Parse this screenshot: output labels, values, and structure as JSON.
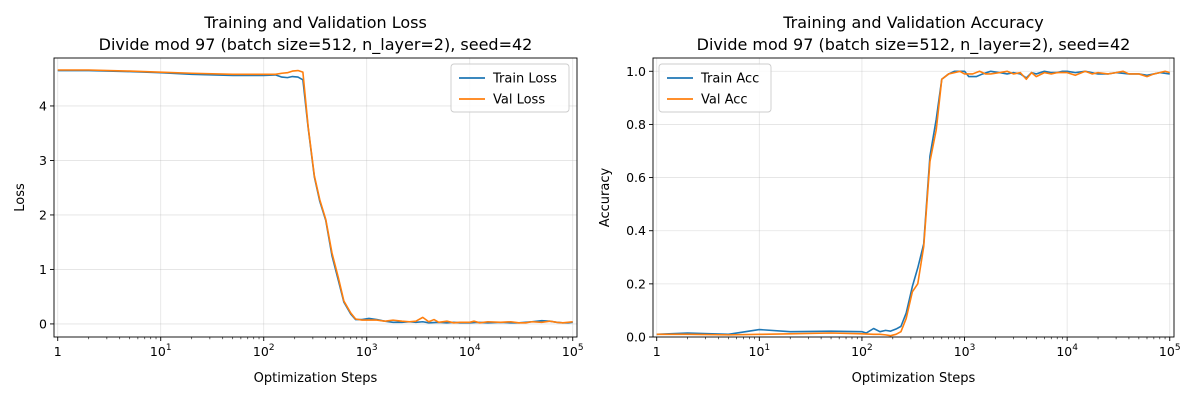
{
  "chart_data": [
    {
      "type": "line",
      "title": "Training and Validation Loss",
      "subtitle": "Divide mod 97 (batch size=512, n_layer=2), seed=42",
      "xlabel": "Optimization Steps",
      "ylabel": "Loss",
      "x_scale": "log",
      "xlim": [
        0.92,
        110000
      ],
      "ylim": [
        -0.24,
        4.88
      ],
      "x_ticks": [
        {
          "value": 1,
          "base": "1",
          "exp": ""
        },
        {
          "value": 10,
          "base": "10",
          "exp": "1"
        },
        {
          "value": 100,
          "base": "10",
          "exp": "2"
        },
        {
          "value": 1000,
          "base": "10",
          "exp": "3"
        },
        {
          "value": 10000,
          "base": "10",
          "exp": "4"
        },
        {
          "value": 100000,
          "base": "10",
          "exp": "5"
        }
      ],
      "y_ticks": [
        {
          "value": 0,
          "label": "0"
        },
        {
          "value": 1,
          "label": "1"
        },
        {
          "value": 2,
          "label": "2"
        },
        {
          "value": 3,
          "label": "3"
        },
        {
          "value": 4,
          "label": "4"
        }
      ],
      "grid": true,
      "legend_position": "top-right",
      "series": [
        {
          "name": "Train Loss",
          "color": "#1f77b4",
          "points": [
            [
              1,
              4.65
            ],
            [
              2,
              4.65
            ],
            [
              5,
              4.63
            ],
            [
              10,
              4.61
            ],
            [
              20,
              4.58
            ],
            [
              50,
              4.56
            ],
            [
              100,
              4.56
            ],
            [
              130,
              4.57
            ],
            [
              150,
              4.53
            ],
            [
              170,
              4.52
            ],
            [
              190,
              4.54
            ],
            [
              215,
              4.53
            ],
            [
              240,
              4.48
            ],
            [
              270,
              3.6
            ],
            [
              310,
              2.7
            ],
            [
              350,
              2.25
            ],
            [
              400,
              1.9
            ],
            [
              460,
              1.25
            ],
            [
              530,
              0.8
            ],
            [
              600,
              0.4
            ],
            [
              700,
              0.18
            ],
            [
              780,
              0.08
            ],
            [
              900,
              0.08
            ],
            [
              1050,
              0.1
            ],
            [
              1250,
              0.08
            ],
            [
              1500,
              0.05
            ],
            [
              1800,
              0.03
            ],
            [
              2200,
              0.03
            ],
            [
              2600,
              0.04
            ],
            [
              3000,
              0.03
            ],
            [
              3500,
              0.04
            ],
            [
              4000,
              0.02
            ],
            [
              5000,
              0.03
            ],
            [
              6000,
              0.02
            ],
            [
              7000,
              0.03
            ],
            [
              8000,
              0.02
            ],
            [
              10000,
              0.02
            ],
            [
              12000,
              0.03
            ],
            [
              15000,
              0.02
            ],
            [
              20000,
              0.03
            ],
            [
              25000,
              0.02
            ],
            [
              30000,
              0.02
            ],
            [
              40000,
              0.04
            ],
            [
              50000,
              0.06
            ],
            [
              60000,
              0.05
            ],
            [
              70000,
              0.03
            ],
            [
              80000,
              0.02
            ],
            [
              90000,
              0.02
            ],
            [
              100000,
              0.03
            ]
          ]
        },
        {
          "name": "Val Loss",
          "color": "#ff7f0e",
          "points": [
            [
              1,
              4.66
            ],
            [
              2,
              4.66
            ],
            [
              5,
              4.64
            ],
            [
              10,
              4.62
            ],
            [
              20,
              4.6
            ],
            [
              50,
              4.58
            ],
            [
              100,
              4.58
            ],
            [
              130,
              4.58
            ],
            [
              150,
              4.6
            ],
            [
              170,
              4.61
            ],
            [
              190,
              4.64
            ],
            [
              215,
              4.65
            ],
            [
              240,
              4.62
            ],
            [
              270,
              3.62
            ],
            [
              310,
              2.72
            ],
            [
              350,
              2.28
            ],
            [
              400,
              1.92
            ],
            [
              460,
              1.3
            ],
            [
              530,
              0.85
            ],
            [
              600,
              0.42
            ],
            [
              700,
              0.2
            ],
            [
              780,
              0.09
            ],
            [
              900,
              0.07
            ],
            [
              1050,
              0.07
            ],
            [
              1250,
              0.07
            ],
            [
              1500,
              0.05
            ],
            [
              1800,
              0.07
            ],
            [
              2200,
              0.05
            ],
            [
              2600,
              0.04
            ],
            [
              3000,
              0.05
            ],
            [
              3500,
              0.12
            ],
            [
              4000,
              0.04
            ],
            [
              4500,
              0.08
            ],
            [
              5000,
              0.03
            ],
            [
              6000,
              0.05
            ],
            [
              7000,
              0.02
            ],
            [
              8000,
              0.03
            ],
            [
              10000,
              0.03
            ],
            [
              11000,
              0.05
            ],
            [
              12500,
              0.02
            ],
            [
              15000,
              0.04
            ],
            [
              20000,
              0.03
            ],
            [
              25000,
              0.04
            ],
            [
              30000,
              0.02
            ],
            [
              35000,
              0.02
            ],
            [
              40000,
              0.04
            ],
            [
              50000,
              0.03
            ],
            [
              60000,
              0.05
            ],
            [
              70000,
              0.03
            ],
            [
              80000,
              0.02
            ],
            [
              90000,
              0.03
            ],
            [
              100000,
              0.04
            ]
          ]
        }
      ]
    },
    {
      "type": "line",
      "title": "Training and Validation Accuracy",
      "subtitle": "Divide mod 97 (batch size=512, n_layer=2), seed=42",
      "xlabel": "Optimization Steps",
      "ylabel": "Accuracy",
      "x_scale": "log",
      "xlim": [
        0.92,
        110000
      ],
      "ylim": [
        0.0,
        1.05
      ],
      "x_ticks": [
        {
          "value": 1,
          "base": "1",
          "exp": ""
        },
        {
          "value": 10,
          "base": "10",
          "exp": "1"
        },
        {
          "value": 100,
          "base": "10",
          "exp": "2"
        },
        {
          "value": 1000,
          "base": "10",
          "exp": "3"
        },
        {
          "value": 10000,
          "base": "10",
          "exp": "4"
        },
        {
          "value": 100000,
          "base": "10",
          "exp": "5"
        }
      ],
      "y_ticks": [
        {
          "value": 0.0,
          "label": "0.0"
        },
        {
          "value": 0.2,
          "label": "0.2"
        },
        {
          "value": 0.4,
          "label": "0.4"
        },
        {
          "value": 0.6,
          "label": "0.6"
        },
        {
          "value": 0.8,
          "label": "0.8"
        },
        {
          "value": 1.0,
          "label": "1.0"
        }
      ],
      "grid": true,
      "legend_position": "top-left",
      "series": [
        {
          "name": "Train Acc",
          "color": "#1f77b4",
          "points": [
            [
              1,
              0.01
            ],
            [
              2,
              0.015
            ],
            [
              5,
              0.01
            ],
            [
              10,
              0.028
            ],
            [
              20,
              0.02
            ],
            [
              50,
              0.022
            ],
            [
              100,
              0.02
            ],
            [
              110,
              0.015
            ],
            [
              130,
              0.032
            ],
            [
              150,
              0.02
            ],
            [
              170,
              0.025
            ],
            [
              190,
              0.022
            ],
            [
              215,
              0.03
            ],
            [
              240,
              0.04
            ],
            [
              270,
              0.09
            ],
            [
              310,
              0.19
            ],
            [
              350,
              0.26
            ],
            [
              400,
              0.35
            ],
            [
              460,
              0.68
            ],
            [
              530,
              0.82
            ],
            [
              600,
              0.97
            ],
            [
              700,
              0.99
            ],
            [
              800,
              1.0
            ],
            [
              900,
              1.0
            ],
            [
              1000,
              1.0
            ],
            [
              1100,
              0.98
            ],
            [
              1300,
              0.98
            ],
            [
              1500,
              0.99
            ],
            [
              1800,
              1.0
            ],
            [
              2200,
              0.995
            ],
            [
              2600,
              0.99
            ],
            [
              3000,
              0.995
            ],
            [
              3500,
              0.99
            ],
            [
              4000,
              0.975
            ],
            [
              4500,
              0.995
            ],
            [
              5000,
              0.99
            ],
            [
              6000,
              1.0
            ],
            [
              7000,
              0.995
            ],
            [
              8000,
              0.995
            ],
            [
              9000,
              1.0
            ],
            [
              10000,
              1.0
            ],
            [
              12000,
              0.995
            ],
            [
              15000,
              1.0
            ],
            [
              20000,
              0.99
            ],
            [
              25000,
              0.99
            ],
            [
              30000,
              0.995
            ],
            [
              40000,
              0.99
            ],
            [
              50000,
              0.99
            ],
            [
              60000,
              0.985
            ],
            [
              70000,
              0.99
            ],
            [
              80000,
              0.995
            ],
            [
              100000,
              0.99
            ]
          ]
        },
        {
          "name": "Val Acc",
          "color": "#ff7f0e",
          "points": [
            [
              1,
              0.01
            ],
            [
              2,
              0.01
            ],
            [
              5,
              0.008
            ],
            [
              10,
              0.01
            ],
            [
              20,
              0.012
            ],
            [
              50,
              0.015
            ],
            [
              100,
              0.012
            ],
            [
              130,
              0.01
            ],
            [
              150,
              0.01
            ],
            [
              170,
              0.008
            ],
            [
              190,
              0.005
            ],
            [
              215,
              0.01
            ],
            [
              240,
              0.02
            ],
            [
              270,
              0.07
            ],
            [
              310,
              0.17
            ],
            [
              350,
              0.2
            ],
            [
              400,
              0.34
            ],
            [
              460,
              0.66
            ],
            [
              530,
              0.78
            ],
            [
              600,
              0.97
            ],
            [
              700,
              0.99
            ],
            [
              800,
              0.995
            ],
            [
              900,
              1.0
            ],
            [
              1000,
              0.99
            ],
            [
              1200,
              0.99
            ],
            [
              1400,
              1.0
            ],
            [
              1600,
              0.99
            ],
            [
              1800,
              0.99
            ],
            [
              2200,
              0.995
            ],
            [
              2600,
              1.0
            ],
            [
              3000,
              0.99
            ],
            [
              3500,
              0.995
            ],
            [
              4000,
              0.97
            ],
            [
              4500,
              0.995
            ],
            [
              5000,
              0.98
            ],
            [
              6000,
              0.995
            ],
            [
              7000,
              0.99
            ],
            [
              8000,
              0.995
            ],
            [
              10000,
              0.995
            ],
            [
              12000,
              0.985
            ],
            [
              15000,
              1.0
            ],
            [
              17500,
              0.99
            ],
            [
              20000,
              0.995
            ],
            [
              25000,
              0.99
            ],
            [
              30000,
              0.995
            ],
            [
              35000,
              1.0
            ],
            [
              40000,
              0.99
            ],
            [
              50000,
              0.99
            ],
            [
              60000,
              0.98
            ],
            [
              70000,
              0.99
            ],
            [
              80000,
              0.995
            ],
            [
              90000,
              1.0
            ],
            [
              100000,
              0.995
            ]
          ]
        }
      ]
    }
  ]
}
